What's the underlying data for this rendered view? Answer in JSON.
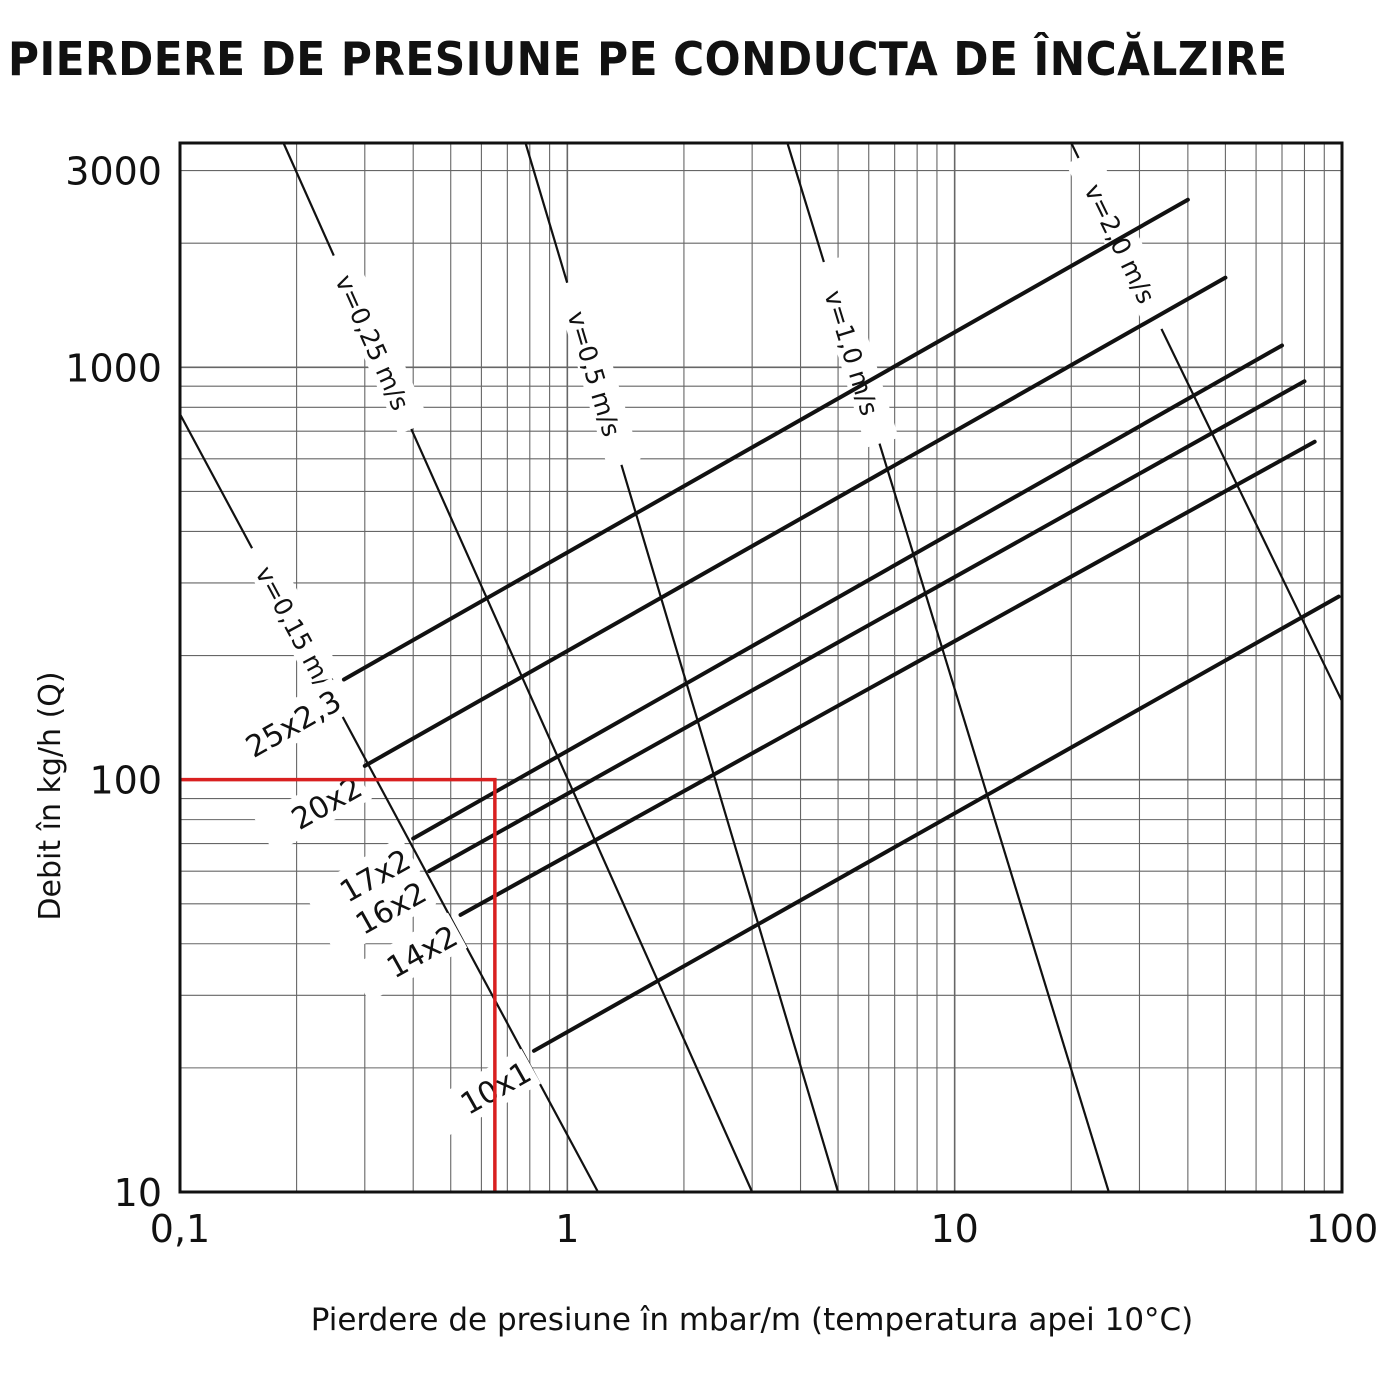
{
  "chart_data": {
    "type": "line",
    "title": "PIERDERE DE PRESIUNE PE CONDUCTA DE ÎNCĂLZIRE",
    "xlabel": "Pierdere de presiune în mbar/m (temperatura apei 10°C)",
    "ylabel": "Debit în kg/h (Q)",
    "x_scale": "log",
    "y_scale": "log",
    "xlim": [
      0.1,
      100
    ],
    "ylim": [
      10,
      3500
    ],
    "x_ticks": [
      {
        "value": 0.1,
        "label": "0,1"
      },
      {
        "value": 1,
        "label": "1"
      },
      {
        "value": 10,
        "label": "10"
      },
      {
        "value": 100,
        "label": "100"
      }
    ],
    "y_ticks": [
      {
        "value": 10,
        "label": "10"
      },
      {
        "value": 100,
        "label": "100"
      },
      {
        "value": 1000,
        "label": "1000"
      },
      {
        "value": 3000,
        "label": "3000"
      }
    ],
    "grid": true,
    "series": [
      {
        "name": "25x2,3",
        "x": [
          0.265,
          40
        ],
        "y": [
          175,
          2550
        ]
      },
      {
        "name": "20x2",
        "x": [
          0.3,
          50
        ],
        "y": [
          108,
          1650
        ]
      },
      {
        "name": "17x2",
        "x": [
          0.4,
          70
        ],
        "y": [
          72,
          1130
        ]
      },
      {
        "name": "16x2",
        "x": [
          0.44,
          80
        ],
        "y": [
          60,
          925
        ]
      },
      {
        "name": "14x2",
        "x": [
          0.53,
          85
        ],
        "y": [
          47,
          660
        ]
      },
      {
        "name": "10x1",
        "x": [
          0.82,
          98
        ],
        "y": [
          22,
          278
        ]
      }
    ],
    "velocity_lines": [
      {
        "name": "v=0,15 m/s",
        "x": [
          0.1,
          1.2
        ],
        "y": [
          770,
          10
        ]
      },
      {
        "name": "v=0,25 m/s",
        "x": [
          0.185,
          3.0
        ],
        "y": [
          3500,
          10
        ]
      },
      {
        "name": "v=0,5 m/s",
        "x": [
          0.78,
          5.0
        ],
        "y": [
          3500,
          10
        ]
      },
      {
        "name": "v=1,0 m/s",
        "x": [
          3.7,
          25
        ],
        "y": [
          3500,
          10
        ]
      },
      {
        "name": "v=2,0 m/s",
        "x": [
          20,
          100
        ],
        "y": [
          3500,
          155
        ]
      }
    ],
    "annotations": {
      "reading_marker": {
        "x": 0.65,
        "y": 100,
        "color": "#d92020"
      }
    },
    "colors": {
      "lines": "#111111",
      "grid": "#666666",
      "marker": "#d92020"
    }
  }
}
